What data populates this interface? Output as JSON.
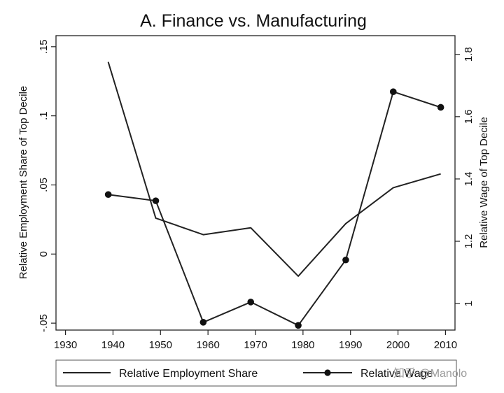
{
  "chart_data": {
    "type": "line",
    "title": "A. Finance vs. Manufacturing",
    "x": [
      1939,
      1949,
      1959,
      1969,
      1979,
      1989,
      1999,
      2009
    ],
    "xlim": [
      1928,
      2012
    ],
    "xticks": [
      1930,
      1940,
      1950,
      1960,
      1970,
      1980,
      1990,
      2000,
      2010
    ],
    "ylabel_left": "Relative Employment Share of Top Decile",
    "ylabel_right": "Relative Wage of Top Decile",
    "ylim_left": [
      -0.055,
      0.158
    ],
    "yticks_left": [
      ".15",
      ".1",
      ".05",
      "0",
      "-.05"
    ],
    "yticks_left_values": [
      0.15,
      0.1,
      0.05,
      0,
      -0.05
    ],
    "ylim_right": [
      0.915,
      1.86
    ],
    "yticks_right": [
      "1.8",
      "1.6",
      "1.4",
      "1.2",
      "1"
    ],
    "yticks_right_values": [
      1.8,
      1.6,
      1.4,
      1.2,
      1.0
    ],
    "series": [
      {
        "name": "Relative Employment Share",
        "axis": "left",
        "marker": "none",
        "color": "#222222",
        "values": [
          0.139,
          0.026,
          0.014,
          0.019,
          -0.016,
          0.022,
          0.048,
          0.058
        ]
      },
      {
        "name": "Relative Wage",
        "axis": "right",
        "marker": "circle",
        "color": "#222222",
        "values": [
          1.35,
          1.33,
          0.94,
          1.005,
          0.93,
          1.14,
          1.68,
          1.63
        ]
      }
    ],
    "legend_position": "bottom",
    "watermark": "知乎 @Manolo"
  }
}
